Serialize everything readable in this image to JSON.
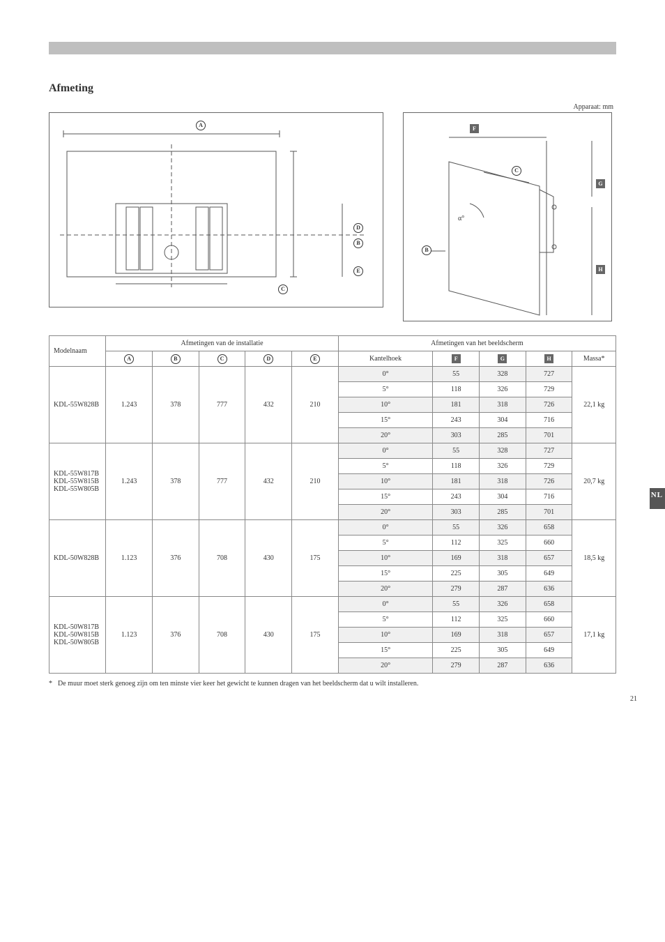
{
  "header": {
    "title": "Afmeting"
  },
  "unit_label": "Apparaat: mm",
  "diagram_letters_circle": [
    "A",
    "B",
    "C",
    "D",
    "E"
  ],
  "diagram_letters_square": [
    "F",
    "G",
    "H"
  ],
  "table": {
    "group1_title": "Afmetingen van de installatie",
    "group2_title": "Afmetingen van het beeldscherm",
    "col_model": "Modelnaam",
    "headers_left": [
      "A",
      "B",
      "C",
      "D",
      "E"
    ],
    "col_angle": "Kantelhoek",
    "headers_right": [
      "F",
      "G",
      "H"
    ],
    "col_mass": "Massa*",
    "blocks": [
      {
        "model": "KDL-55W828B",
        "left": [
          "1.243",
          "378",
          "777",
          "432",
          "210"
        ],
        "angles": [
          "0°",
          "5°",
          "10°",
          "15°",
          "20°"
        ],
        "right_rows": [
          [
            "55",
            "328",
            "727"
          ],
          [
            "118",
            "326",
            "729"
          ],
          [
            "181",
            "318",
            "726"
          ],
          [
            "243",
            "304",
            "716"
          ],
          [
            "303",
            "285",
            "701"
          ]
        ],
        "mass": "22,1 kg"
      },
      {
        "model": "KDL-55W817B\nKDL-55W815B\nKDL-55W805B",
        "left": [
          "1.243",
          "378",
          "777",
          "432",
          "210"
        ],
        "angles": [
          "0°",
          "5°",
          "10°",
          "15°",
          "20°"
        ],
        "right_rows": [
          [
            "55",
            "328",
            "727"
          ],
          [
            "118",
            "326",
            "729"
          ],
          [
            "181",
            "318",
            "726"
          ],
          [
            "243",
            "304",
            "716"
          ],
          [
            "303",
            "285",
            "701"
          ]
        ],
        "mass": "20,7 kg"
      },
      {
        "model": "KDL-50W828B",
        "left": [
          "1.123",
          "376",
          "708",
          "430",
          "175"
        ],
        "angles": [
          "0°",
          "5°",
          "10°",
          "15°",
          "20°"
        ],
        "right_rows": [
          [
            "55",
            "326",
            "658"
          ],
          [
            "112",
            "325",
            "660"
          ],
          [
            "169",
            "318",
            "657"
          ],
          [
            "225",
            "305",
            "649"
          ],
          [
            "279",
            "287",
            "636"
          ]
        ],
        "mass": "18,5 kg"
      },
      {
        "model": "KDL-50W817B\nKDL-50W815B\nKDL-50W805B",
        "left": [
          "1.123",
          "376",
          "708",
          "430",
          "175"
        ],
        "angles": [
          "0°",
          "5°",
          "10°",
          "15°",
          "20°"
        ],
        "right_rows": [
          [
            "55",
            "326",
            "658"
          ],
          [
            "112",
            "325",
            "660"
          ],
          [
            "169",
            "318",
            "657"
          ],
          [
            "225",
            "305",
            "649"
          ],
          [
            "279",
            "287",
            "636"
          ]
        ],
        "mass": "17,1 kg"
      }
    ]
  },
  "footnote": "De muur moet sterk genoeg zijn om ten minste vier keer het gewicht te kunnen dragen van het beeldscherm dat u wilt installeren.",
  "lang_tag": "NL",
  "page_number": "21",
  "colors": {
    "header_bar": "#bfbfbf",
    "grid": "#888888",
    "dark_box": "#666666"
  },
  "alpha_symbol": "α°"
}
